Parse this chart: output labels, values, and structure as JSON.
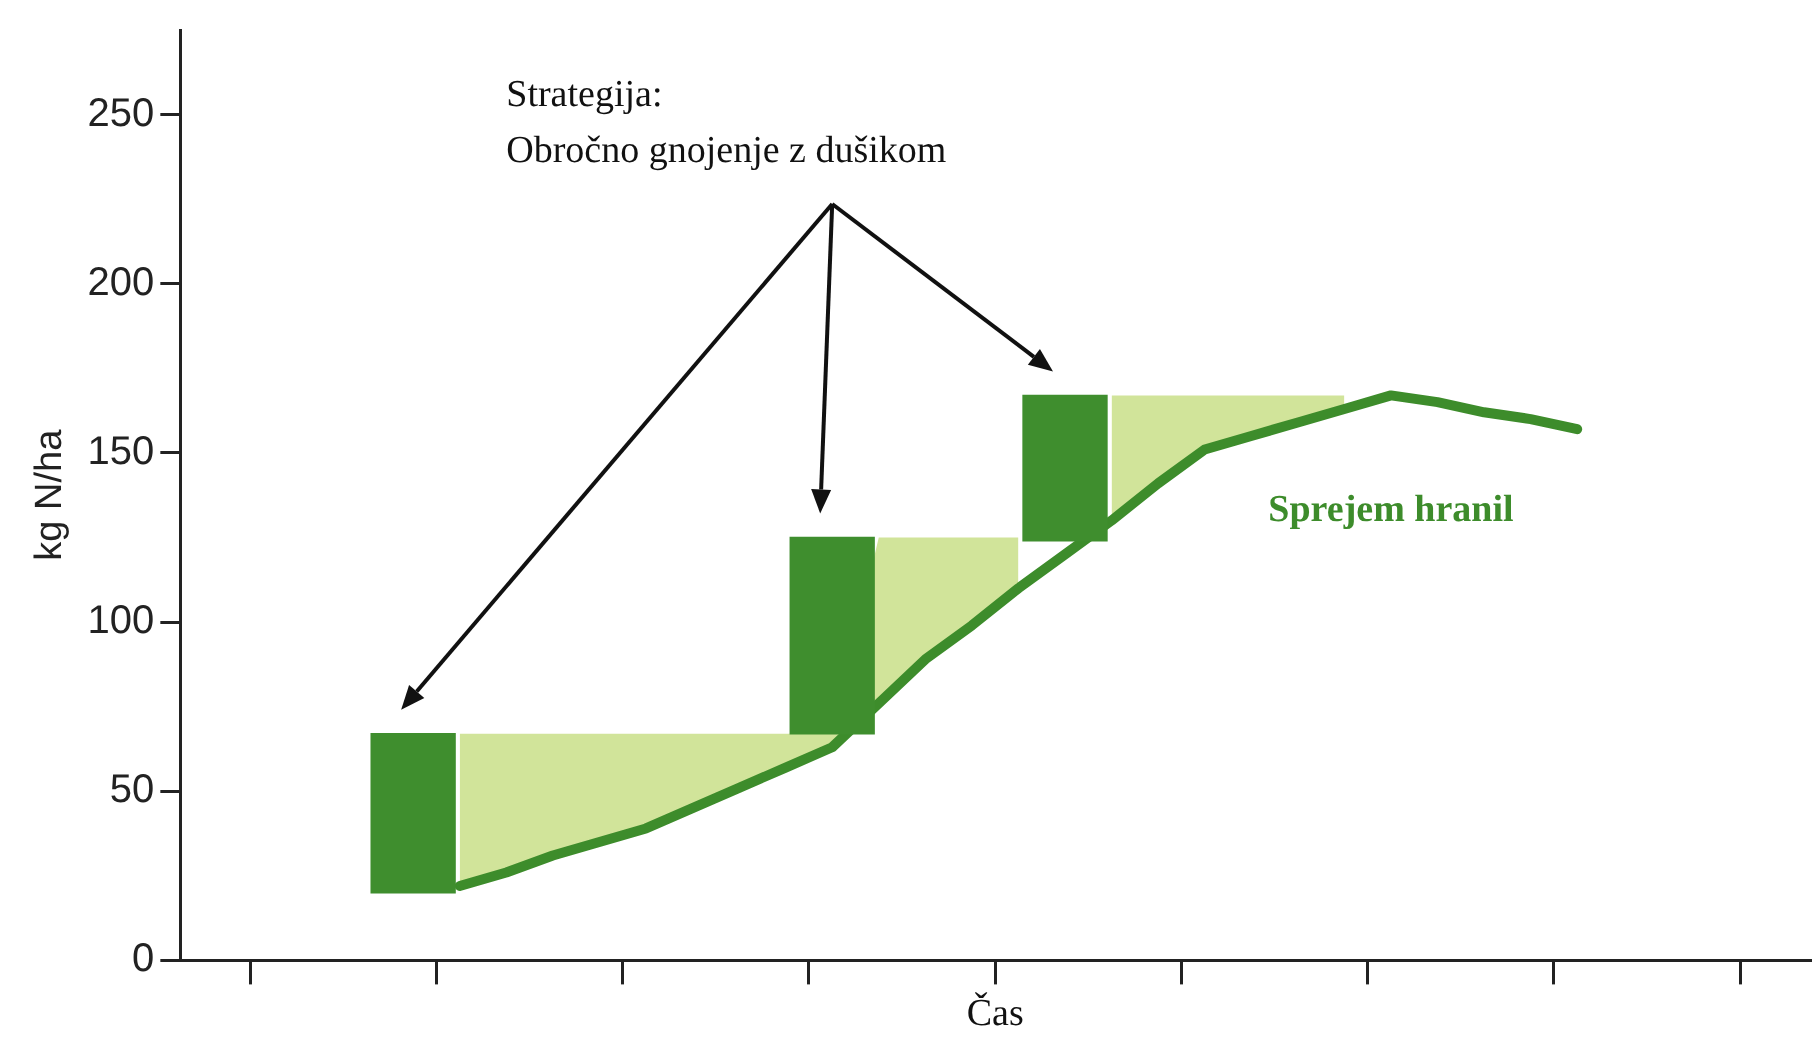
{
  "chart_data": {
    "type": "line",
    "xlabel": "Čas",
    "ylabel": "kg N/ha",
    "annotations": [
      "Strategija:\nObročno gnojenje z dušikom"
    ],
    "categories": [
      null,
      null,
      null,
      null,
      null,
      null,
      null,
      null,
      null,
      null,
      null,
      null,
      null,
      null,
      null,
      null,
      null,
      null,
      null,
      null,
      null,
      null,
      null,
      null,
      null,
      null,
      null,
      null,
      null,
      null,
      null,
      null,
      null,
      null,
      null,
      null
    ],
    "ylim": [
      0,
      275
    ],
    "yticks": [
      0,
      50,
      100,
      150,
      200,
      250
    ],
    "tick_labels": "y",
    "grid": false,
    "legend": false,
    "marker": "none",
    "series": [
      {
        "name": "Sprejem hranil",
        "color": "#3d8c2b",
        "values": [
          null,
          null,
          null,
          null,
          null,
          null,
          22,
          26,
          31,
          35,
          39,
          45,
          51,
          57,
          63,
          76,
          89,
          99,
          110,
          120,
          130,
          141,
          151,
          155,
          159,
          163,
          167,
          165,
          162,
          160,
          157,
          null,
          null,
          null,
          null,
          null
        ],
        "lower": [
          null,
          null,
          null,
          null,
          null,
          null,
          22,
          26,
          31,
          35,
          39,
          45,
          51,
          57,
          63,
          76,
          89,
          99,
          110,
          null,
          130,
          141,
          151,
          155,
          159,
          163,
          null,
          null,
          null,
          null,
          null,
          null,
          null,
          null,
          null,
          null
        ],
        "upper": [
          null,
          null,
          null,
          null,
          null,
          null,
          67,
          67,
          67,
          67,
          67,
          67,
          67,
          67,
          67,
          125,
          125,
          125,
          125,
          null,
          167,
          167,
          167,
          167,
          167,
          167,
          null,
          null,
          null,
          null,
          null,
          null,
          null,
          null,
          null,
          null
        ]
      },
      {
        "type": "bar",
        "color": "#3f8e2e",
        "base": [
          null,
          null,
          null,
          null,
          null,
          20,
          null,
          null,
          null,
          null,
          null,
          null,
          null,
          null,
          67,
          null,
          null,
          null,
          null,
          124,
          null,
          null,
          null,
          null,
          null,
          null,
          null,
          null,
          null,
          null,
          null,
          null,
          null,
          null,
          null,
          null
        ],
        "values": [
          null,
          null,
          null,
          null,
          null,
          47,
          null,
          null,
          null,
          null,
          null,
          null,
          null,
          null,
          58,
          null,
          null,
          null,
          null,
          43,
          null,
          null,
          null,
          null,
          null,
          null,
          null,
          null,
          null,
          null,
          null,
          null,
          null,
          null,
          null,
          null
        ]
      }
    ]
  }
}
